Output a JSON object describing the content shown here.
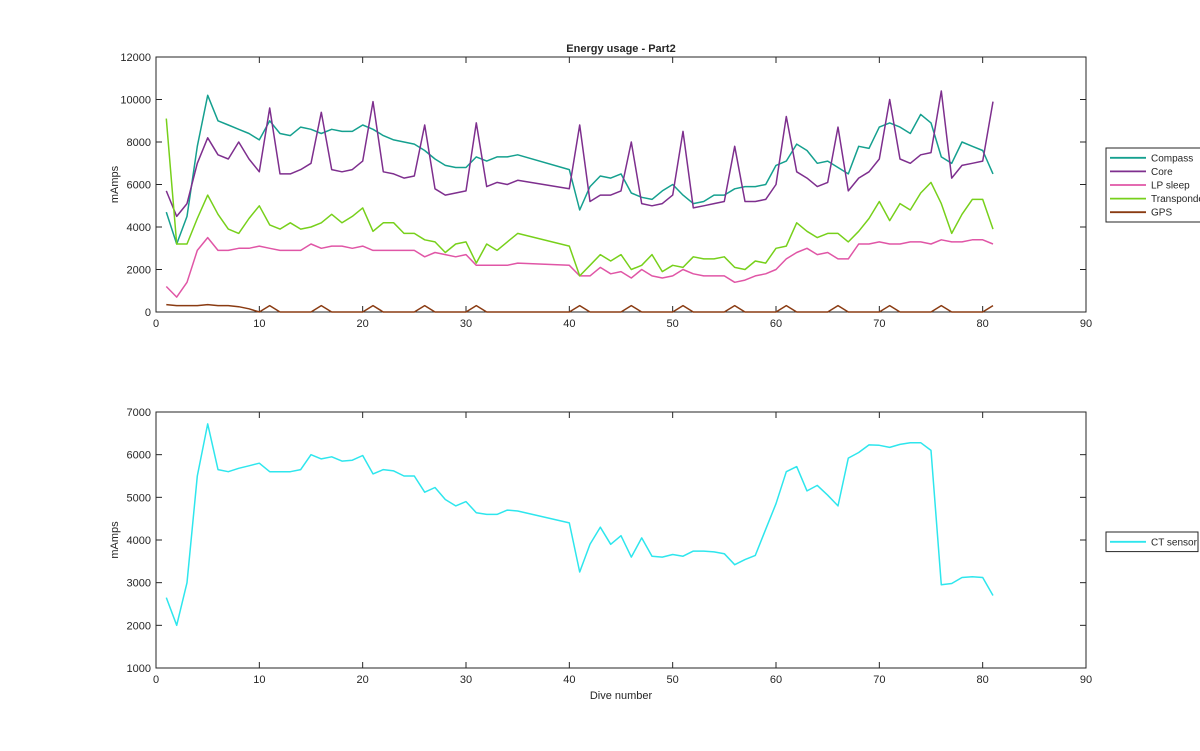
{
  "chart_data": [
    {
      "type": "line",
      "title": "Energy usage - Part2",
      "xlabel": "",
      "ylabel": "mAmps",
      "xlim": [
        0,
        90
      ],
      "ylim": [
        0,
        12000
      ],
      "xticks": [
        0,
        10,
        20,
        30,
        40,
        50,
        60,
        70,
        80,
        90
      ],
      "yticks": [
        0,
        2000,
        4000,
        6000,
        8000,
        10000,
        12000
      ],
      "grid": false,
      "legend": "outside-right",
      "series": [
        {
          "name": "Compass",
          "color": "#15a08f",
          "x": [
            1,
            2,
            3,
            4,
            5,
            6,
            7,
            8,
            9,
            10,
            11,
            12,
            13,
            14,
            15,
            16,
            17,
            18,
            19,
            20,
            21,
            22,
            23,
            24,
            25,
            26,
            27,
            28,
            29,
            30,
            31,
            32,
            33,
            34,
            35,
            40,
            41,
            42,
            43,
            44,
            45,
            46,
            47,
            48,
            49,
            50,
            51,
            52,
            53,
            54,
            55,
            56,
            57,
            58,
            59,
            60,
            61,
            62,
            63,
            64,
            65,
            66,
            67,
            68,
            69,
            70,
            71,
            72,
            73,
            74,
            75,
            76,
            77,
            78,
            79,
            80,
            81
          ],
          "y": [
            4700,
            3200,
            4500,
            7800,
            10200,
            9000,
            8800,
            8600,
            8400,
            8100,
            9000,
            8400,
            8300,
            8700,
            8600,
            8400,
            8600,
            8500,
            8500,
            8800,
            8600,
            8300,
            8100,
            8000,
            7900,
            7600,
            7200,
            6900,
            6800,
            6800,
            7300,
            7100,
            7300,
            7300,
            7400,
            6700,
            4800,
            5900,
            6400,
            6300,
            6500,
            5600,
            5400,
            5300,
            5700,
            6000,
            5500,
            5100,
            5200,
            5500,
            5500,
            5800,
            5900,
            5900,
            6000,
            6900,
            7100,
            7900,
            7600,
            7000,
            7100,
            6800,
            6500,
            7800,
            7700,
            8700,
            8900,
            8700,
            8400,
            9300,
            8900,
            7300,
            7000,
            8000,
            7800,
            7600,
            6500
          ]
        },
        {
          "name": "Core",
          "color": "#7e2f8e",
          "x": [
            1,
            2,
            3,
            4,
            5,
            6,
            7,
            8,
            9,
            10,
            11,
            12,
            13,
            14,
            15,
            16,
            17,
            18,
            19,
            20,
            21,
            22,
            23,
            24,
            25,
            26,
            27,
            28,
            29,
            30,
            31,
            32,
            33,
            34,
            35,
            40,
            41,
            42,
            43,
            44,
            45,
            46,
            47,
            48,
            49,
            50,
            51,
            52,
            53,
            54,
            55,
            56,
            57,
            58,
            59,
            60,
            61,
            62,
            63,
            64,
            65,
            66,
            67,
            68,
            69,
            70,
            71,
            72,
            73,
            74,
            75,
            76,
            77,
            78,
            79,
            80,
            81
          ],
          "y": [
            5700,
            4500,
            5100,
            7000,
            8200,
            7400,
            7200,
            8000,
            7200,
            6600,
            9600,
            6500,
            6500,
            6700,
            7000,
            9400,
            6700,
            6600,
            6700,
            7100,
            9900,
            6600,
            6500,
            6300,
            6400,
            8800,
            5800,
            5500,
            5600,
            5700,
            8900,
            5900,
            6100,
            6000,
            6200,
            5800,
            8800,
            5200,
            5500,
            5500,
            5700,
            8000,
            5100,
            5000,
            5100,
            5500,
            8500,
            4900,
            5000,
            5100,
            5200,
            7800,
            5200,
            5200,
            5300,
            6000,
            9200,
            6600,
            6300,
            5900,
            6100,
            8700,
            5700,
            6300,
            6600,
            7200,
            10000,
            7200,
            7000,
            7400,
            7500,
            10400,
            6300,
            6900,
            7000,
            7100,
            9900
          ]
        },
        {
          "name": "LP sleep",
          "color": "#e056a6",
          "x": [
            1,
            2,
            3,
            4,
            5,
            6,
            7,
            8,
            9,
            10,
            11,
            12,
            13,
            14,
            15,
            16,
            17,
            18,
            19,
            20,
            21,
            22,
            23,
            24,
            25,
            26,
            27,
            28,
            29,
            30,
            31,
            32,
            33,
            34,
            35,
            40,
            41,
            42,
            43,
            44,
            45,
            46,
            47,
            48,
            49,
            50,
            51,
            52,
            53,
            54,
            55,
            56,
            57,
            58,
            59,
            60,
            61,
            62,
            63,
            64,
            65,
            66,
            67,
            68,
            69,
            70,
            71,
            72,
            73,
            74,
            75,
            76,
            77,
            78,
            79,
            80,
            81
          ],
          "y": [
            1200,
            700,
            1400,
            2900,
            3500,
            2900,
            2900,
            3000,
            3000,
            3100,
            3000,
            2900,
            2900,
            2900,
            3200,
            3000,
            3100,
            3100,
            3000,
            3100,
            2900,
            2900,
            2900,
            2900,
            2900,
            2600,
            2800,
            2700,
            2600,
            2700,
            2200,
            2200,
            2200,
            2200,
            2300,
            2200,
            1700,
            1700,
            2100,
            1800,
            1900,
            1600,
            2000,
            1700,
            1600,
            1700,
            2000,
            1800,
            1700,
            1700,
            1700,
            1400,
            1500,
            1700,
            1800,
            2000,
            2500,
            2800,
            3000,
            2700,
            2800,
            2500,
            2500,
            3200,
            3200,
            3300,
            3200,
            3200,
            3300,
            3300,
            3200,
            3400,
            3300,
            3300,
            3400,
            3400,
            3200
          ]
        },
        {
          "name": "Transponder",
          "color": "#77d01b",
          "x": [
            1,
            2,
            3,
            4,
            5,
            6,
            7,
            8,
            9,
            10,
            11,
            12,
            13,
            14,
            15,
            16,
            17,
            18,
            19,
            20,
            21,
            22,
            23,
            24,
            25,
            26,
            27,
            28,
            29,
            30,
            31,
            32,
            33,
            34,
            35,
            40,
            41,
            42,
            43,
            44,
            45,
            46,
            47,
            48,
            49,
            50,
            51,
            52,
            53,
            54,
            55,
            56,
            57,
            58,
            59,
            60,
            61,
            62,
            63,
            64,
            65,
            66,
            67,
            68,
            69,
            70,
            71,
            72,
            73,
            74,
            75,
            76,
            77,
            78,
            79,
            80,
            81
          ],
          "y": [
            9100,
            3200,
            3200,
            4400,
            5500,
            4600,
            3900,
            3700,
            4400,
            5000,
            4100,
            3900,
            4200,
            3900,
            4000,
            4200,
            4600,
            4200,
            4500,
            4900,
            3800,
            4200,
            4200,
            3700,
            3700,
            3400,
            3300,
            2800,
            3200,
            3300,
            2300,
            3200,
            2900,
            3300,
            3700,
            3100,
            1700,
            2200,
            2700,
            2400,
            2700,
            2000,
            2200,
            2700,
            1900,
            2200,
            2100,
            2600,
            2500,
            2500,
            2600,
            2100,
            2000,
            2400,
            2300,
            3000,
            3100,
            4200,
            3800,
            3500,
            3700,
            3700,
            3300,
            3800,
            4400,
            5200,
            4300,
            5100,
            4800,
            5600,
            6100,
            5100,
            3700,
            4600,
            5300,
            5300,
            3900
          ]
        },
        {
          "name": "GPS",
          "color": "#8a3b12",
          "x": [
            1,
            2,
            3,
            4,
            5,
            6,
            7,
            8,
            9,
            10,
            11,
            12,
            13,
            14,
            15,
            16,
            17,
            18,
            19,
            20,
            21,
            22,
            23,
            24,
            25,
            26,
            27,
            28,
            29,
            30,
            31,
            32,
            33,
            34,
            35,
            40,
            41,
            42,
            43,
            44,
            45,
            46,
            47,
            48,
            49,
            50,
            51,
            52,
            53,
            54,
            55,
            56,
            57,
            58,
            59,
            60,
            61,
            62,
            63,
            64,
            65,
            66,
            67,
            68,
            69,
            70,
            71,
            72,
            73,
            74,
            75,
            76,
            77,
            78,
            79,
            80,
            81
          ],
          "y": [
            350,
            300,
            300,
            300,
            350,
            300,
            300,
            250,
            150,
            0,
            300,
            0,
            0,
            0,
            0,
            300,
            0,
            0,
            0,
            0,
            300,
            0,
            0,
            0,
            0,
            300,
            0,
            0,
            0,
            0,
            300,
            0,
            0,
            0,
            0,
            0,
            300,
            0,
            0,
            0,
            0,
            300,
            0,
            0,
            0,
            0,
            300,
            0,
            0,
            0,
            0,
            300,
            0,
            0,
            0,
            0,
            300,
            0,
            0,
            0,
            0,
            300,
            0,
            0,
            0,
            0,
            300,
            0,
            0,
            0,
            0,
            300,
            0,
            0,
            0,
            0,
            300
          ]
        }
      ]
    },
    {
      "type": "line",
      "title": "",
      "xlabel": "Dive number",
      "ylabel": "mAmps",
      "xlim": [
        0,
        90
      ],
      "ylim": [
        1000,
        7000
      ],
      "xticks": [
        0,
        10,
        20,
        30,
        40,
        50,
        60,
        70,
        80,
        90
      ],
      "yticks": [
        1000,
        2000,
        3000,
        4000,
        5000,
        6000,
        7000
      ],
      "grid": false,
      "legend": "outside-right",
      "series": [
        {
          "name": "CT sensor",
          "color": "#2ee6ed",
          "x": [
            1,
            2,
            3,
            4,
            5,
            6,
            7,
            8,
            9,
            10,
            11,
            12,
            13,
            14,
            15,
            16,
            17,
            18,
            19,
            20,
            21,
            22,
            23,
            24,
            25,
            26,
            27,
            28,
            29,
            30,
            31,
            32,
            33,
            34,
            35,
            40,
            41,
            42,
            43,
            44,
            45,
            46,
            47,
            48,
            49,
            50,
            51,
            52,
            53,
            54,
            55,
            56,
            57,
            58,
            59,
            60,
            61,
            62,
            63,
            64,
            65,
            66,
            67,
            68,
            69,
            70,
            71,
            72,
            73,
            74,
            75,
            76,
            77,
            78,
            79,
            80,
            81
          ],
          "y": [
            2650,
            2000,
            3000,
            5500,
            6720,
            5650,
            5600,
            5680,
            5740,
            5800,
            5600,
            5600,
            5600,
            5650,
            6000,
            5900,
            5950,
            5850,
            5870,
            5980,
            5550,
            5650,
            5620,
            5500,
            5500,
            5120,
            5230,
            4950,
            4800,
            4900,
            4640,
            4600,
            4600,
            4700,
            4680,
            4400,
            3250,
            3900,
            4300,
            3900,
            4100,
            3600,
            4050,
            3620,
            3600,
            3660,
            3620,
            3740,
            3740,
            3720,
            3680,
            3420,
            3540,
            3640,
            4250,
            4850,
            5600,
            5720,
            5150,
            5280,
            5050,
            4800,
            5920,
            6050,
            6230,
            6220,
            6170,
            6240,
            6280,
            6280,
            6100,
            2950,
            2980,
            3120,
            3140,
            3120,
            2700
          ]
        }
      ]
    }
  ]
}
